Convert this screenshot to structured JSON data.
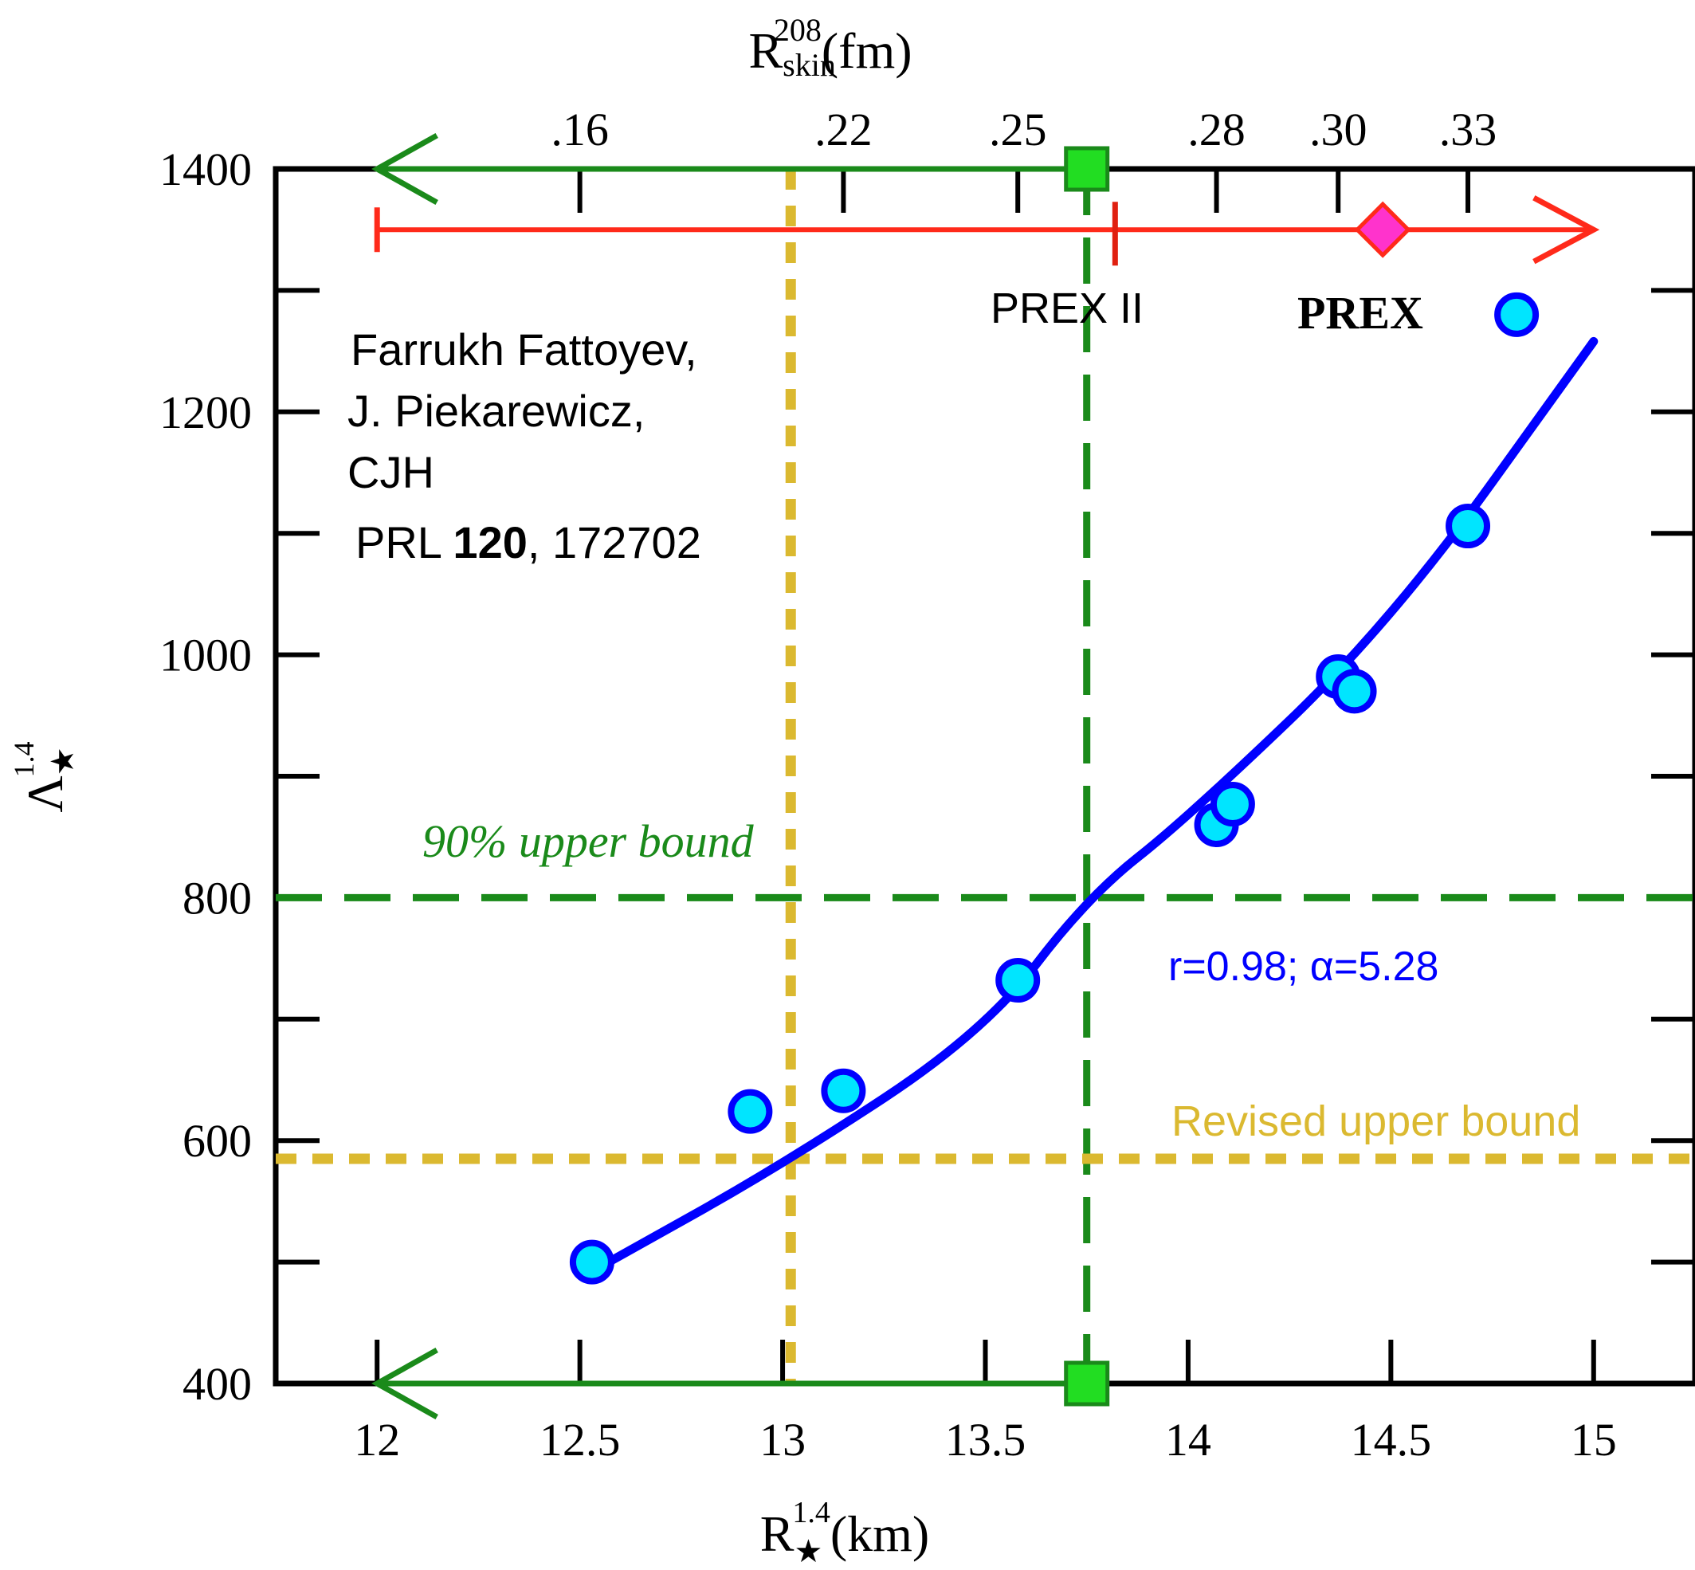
{
  "chart_data": {
    "type": "scatter",
    "title": "",
    "x_axis": {
      "label_main": "R",
      "label_sub": "★",
      "label_sup": "1.4",
      "label_unit": "(km)",
      "range": [
        11.75,
        15.25
      ],
      "ticks": [
        "12",
        "12.5",
        "13",
        "13.5",
        "14",
        "14.5",
        "15"
      ]
    },
    "x2_axis": {
      "label_main": "R",
      "label_sub": "skin",
      "label_sup": "208",
      "label_unit": "(fm)",
      "ticks": [
        {
          "label": ".16",
          "x": 12.5
        },
        {
          "label": ".22",
          "x": 13.15
        },
        {
          "label": ".25",
          "x": 13.58
        },
        {
          "label": ".28",
          "x": 14.07
        },
        {
          "label": ".30",
          "x": 14.37
        },
        {
          "label": ".33",
          "x": 14.69
        }
      ]
    },
    "y_axis": {
      "label_main": "Λ",
      "label_sub": "★",
      "label_sup": "1.4",
      "range": [
        400,
        1400
      ],
      "ticks": [
        "400",
        "600",
        "800",
        "1000",
        "1200",
        "1400"
      ],
      "minor_ticks": [
        500,
        700,
        900,
        1100,
        1300
      ]
    },
    "grid": false,
    "series": [
      {
        "kind": "points",
        "color": "#00e5ff",
        "points": [
          {
            "x": 12.53,
            "y": 500
          },
          {
            "x": 12.92,
            "y": 624
          },
          {
            "x": 13.15,
            "y": 641
          },
          {
            "x": 13.58,
            "y": 732
          },
          {
            "x": 14.07,
            "y": 860
          },
          {
            "x": 14.11,
            "y": 877
          },
          {
            "x": 14.37,
            "y": 982
          },
          {
            "x": 14.41,
            "y": 970
          },
          {
            "x": 14.69,
            "y": 1106
          },
          {
            "x": 14.81,
            "y": 1280
          }
        ]
      },
      {
        "kind": "fit-line",
        "color": "#0000ff",
        "points": [
          {
            "x": 12.55,
            "y": 496
          },
          {
            "x": 13.0,
            "y": 580
          },
          {
            "x": 13.5,
            "y": 690
          },
          {
            "x": 13.75,
            "y": 800
          },
          {
            "x": 14.0,
            "y": 866
          },
          {
            "x": 14.5,
            "y": 1026
          },
          {
            "x": 15.0,
            "y": 1258
          }
        ]
      }
    ],
    "reference_lines": {
      "green_vertical_x": 13.75,
      "green_horizontal_y": 800,
      "gold_vertical_x": 13.02,
      "gold_horizontal_y": 585,
      "green_arrow_top_y": 1400,
      "green_arrow_bottom_y": 400,
      "green_arrow_end_x": 12.0,
      "red_arrow_y": 1350,
      "red_arrow_from_x": 12.0,
      "red_arrow_to_x": 15.0,
      "red_tick_x": 13.82,
      "prex_diamond": {
        "x": 14.48,
        "y": 1350
      }
    },
    "annotations": {
      "prex2": "PREX II",
      "prex": "PREX",
      "authors_line1": "Farrukh Fattoyev,",
      "authors_line2": "J. Piekarewicz,",
      "authors_line3": "CJH",
      "ref_prefix": "PRL ",
      "ref_volume": "120",
      "ref_suffix": ", 172702",
      "bound90": "90% upper bound",
      "fit_stats": "r=0.98; α=5.28",
      "revised_bound": "Revised upper bound"
    },
    "colors": {
      "green": "#1a8a1a",
      "green_marker": "#22dd22",
      "gold": "#dbb930",
      "red": "#ff2a1a",
      "magenta": "#ff33cc",
      "blue": "#0000ff",
      "cyan": "#00e5ff"
    }
  }
}
